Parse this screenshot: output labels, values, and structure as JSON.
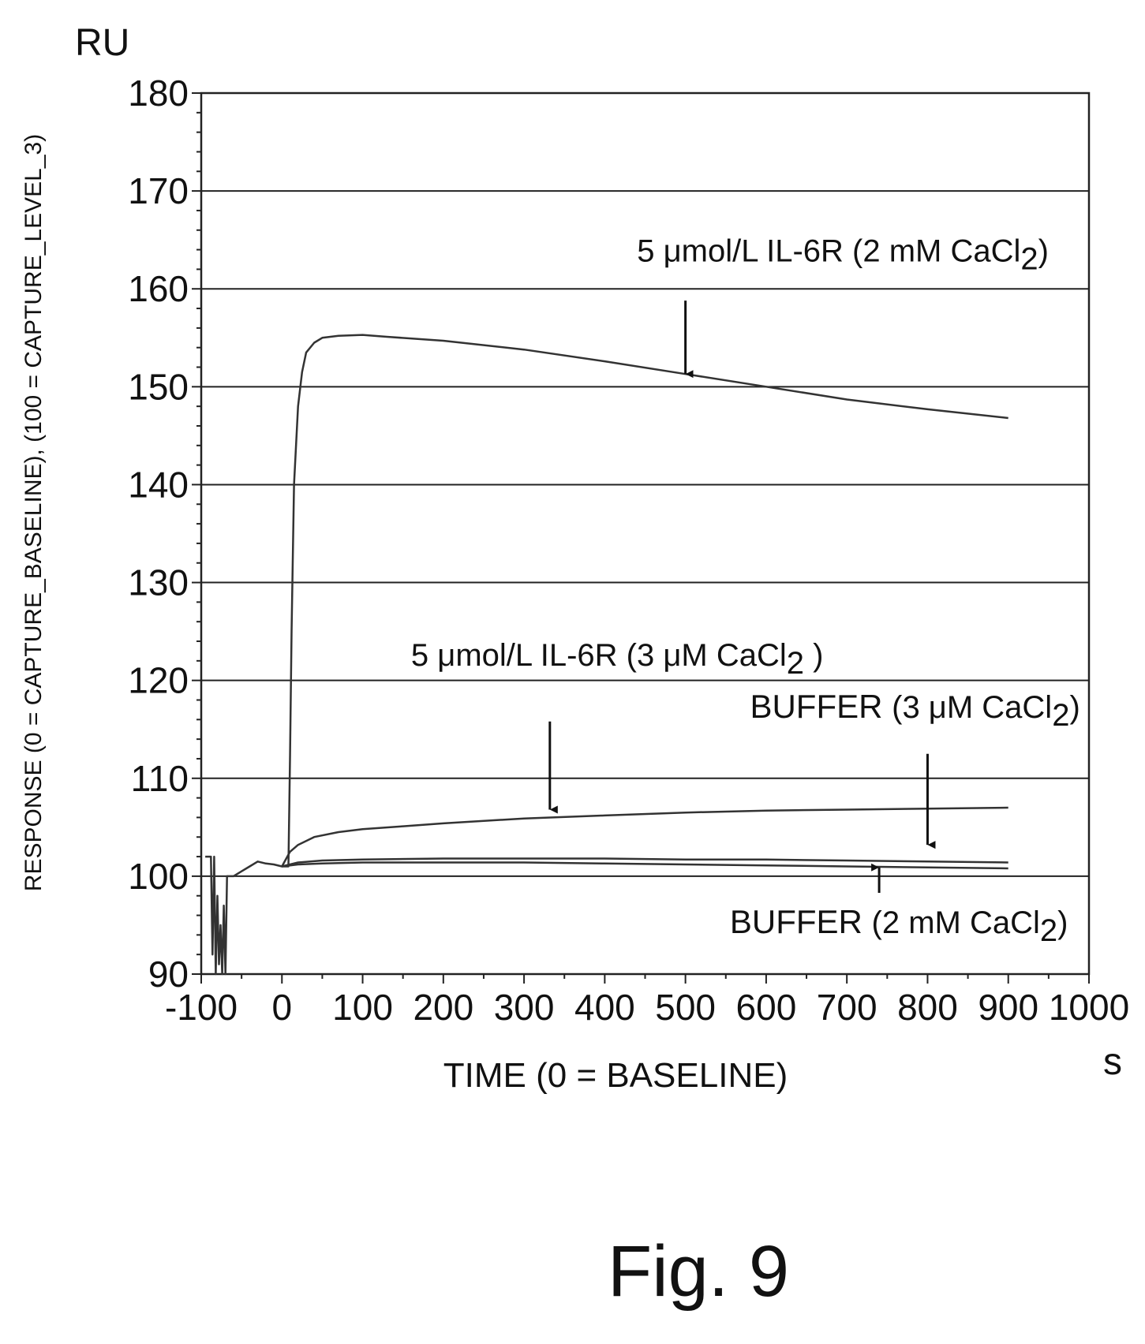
{
  "chart_data": {
    "type": "line",
    "y_unit": "RU",
    "x_unit": "s",
    "xlabel": "TIME (0 = BASELINE)",
    "ylabel": "RESPONSE (0 = CAPTURE_BASELINE), (100 = CAPTURE_LEVEL_3)",
    "xlim": [
      -100,
      1000
    ],
    "ylim": [
      90,
      180
    ],
    "x_ticks": [
      -100,
      0,
      100,
      200,
      300,
      400,
      500,
      600,
      700,
      800,
      900,
      1000
    ],
    "y_ticks": [
      90,
      100,
      110,
      120,
      130,
      140,
      150,
      160,
      170,
      180
    ],
    "grid": "horizontal",
    "series": [
      {
        "color": "#333333",
        "x": [
          -95,
          -88,
          -86,
          -84,
          -82,
          -80,
          -78,
          -76,
          -74,
          -72,
          -70,
          -68,
          -66,
          -64,
          -60,
          -50,
          -40,
          -30,
          -20,
          -10,
          0,
          5,
          8,
          10,
          12,
          15,
          20,
          25,
          30,
          40,
          50,
          70,
          100,
          130,
          200,
          300,
          400,
          500,
          600,
          700,
          800,
          900
        ],
        "y": [
          102,
          102,
          92,
          102,
          90,
          98,
          91,
          95,
          90,
          97,
          90,
          100,
          100,
          100,
          100,
          100.5,
          101,
          101.5,
          101.3,
          101.2,
          101,
          101,
          101,
          112,
          125,
          140,
          148,
          151.5,
          153.5,
          154.5,
          155,
          155.2,
          155.3,
          155.1,
          154.7,
          153.8,
          152.6,
          151.3,
          150,
          148.7,
          147.7,
          146.8
        ]
      },
      {
        "color": "#333333",
        "x": [
          0,
          10,
          20,
          40,
          70,
          100,
          150,
          200,
          300,
          400,
          500,
          600,
          700,
          800,
          900
        ],
        "y": [
          101,
          102.5,
          103.2,
          104,
          104.5,
          104.8,
          105.1,
          105.4,
          105.9,
          106.2,
          106.5,
          106.7,
          106.8,
          106.9,
          107
        ]
      },
      {
        "color": "#333333",
        "x": [
          0,
          20,
          50,
          100,
          200,
          300,
          400,
          500,
          600,
          700,
          800,
          900
        ],
        "y": [
          101,
          101.4,
          101.6,
          101.7,
          101.8,
          101.8,
          101.8,
          101.7,
          101.7,
          101.6,
          101.5,
          101.4
        ]
      },
      {
        "color": "#333333",
        "x": [
          0,
          20,
          50,
          100,
          200,
          300,
          400,
          500,
          600,
          700,
          800,
          900
        ],
        "y": [
          101,
          101.2,
          101.3,
          101.4,
          101.4,
          101.4,
          101.3,
          101.2,
          101.1,
          101,
          100.9,
          100.8
        ]
      }
    ],
    "annotations": [
      {
        "text": "5 μmol/L IL-6R  (2 mM CaCl",
        "subscript": "2",
        "suffix": ")",
        "arrow_x": 500,
        "arrow_from_y": 158.8,
        "arrow_to_y": 151.3,
        "text_x": 440,
        "text_y": 162.8
      },
      {
        "text": "5 μmol/L IL-6R (3 μM CaCl",
        "subscript": "2",
        "suffix": " )",
        "arrow_x": 332,
        "arrow_from_y": 115.8,
        "arrow_to_y": 106.8,
        "text_x": 160,
        "text_y": 121.5
      },
      {
        "text": "BUFFER",
        "text2": "(3 μM CaCl",
        "subscript": "2",
        "suffix": ")",
        "arrow_x": 800,
        "arrow_from_y": 112.5,
        "arrow_to_y": 103.2,
        "text_x": 580,
        "text_y": 116.2
      },
      {
        "text": "BUFFER",
        "text2": "(2 mM CaCl",
        "subscript": "2",
        "suffix": ")",
        "arrow_x": 740,
        "arrow_from_y": 98.3,
        "arrow_to_y": 100.9,
        "text_x": 555,
        "text_y": 94.2
      }
    ]
  },
  "figure_label": "Fig. 9"
}
